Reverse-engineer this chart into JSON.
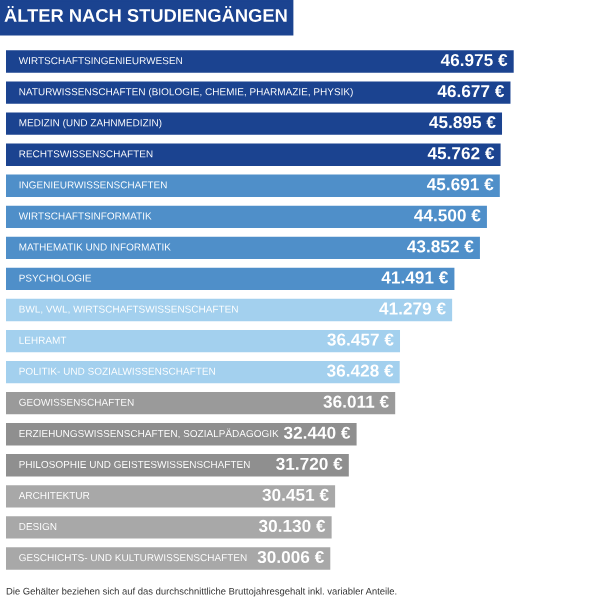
{
  "chart_data": {
    "type": "bar",
    "orientation": "horizontal",
    "title": "ÄLTER NACH STUDIENGÄNGEN",
    "categories": [
      "WIRTSCHAFTSINGENIEURWESEN",
      "NATURWISSENSCHAFTEN (BIOLOGIE, CHEMIE, PHARMAZIE, PHYSIK)",
      "MEDIZIN (UND ZAHNMEDIZIN)",
      "RECHTSWISSENSCHAFTEN",
      "INGENIEURWISSENSCHAFTEN",
      "WIRTSCHAFTSINFORMATIK",
      "MATHEMATIK UND INFORMATIK",
      "PSYCHOLOGIE",
      "BWL, VWL, WIRTSCHAFTSWISSENSCHAFTEN",
      "LEHRAMT",
      "POLITIK- UND SOZIALWISSENSCHAFTEN",
      "GEOWISSENSCHAFTEN",
      "ERZIEHUNGSWISSENSCHAFTEN, SOZIALPÄDAGOGIK",
      "PHILOSOPHIE UND GEISTESWISSENSCHAFTEN",
      "ARCHITEKTUR",
      "DESIGN",
      "GESCHICHTS- UND KULTURWISSENSCHAFTEN"
    ],
    "values": [
      46975,
      46677,
      45895,
      45762,
      45691,
      44500,
      43852,
      41491,
      41279,
      36457,
      36428,
      36011,
      32440,
      31720,
      30451,
      30130,
      30006
    ],
    "value_labels": [
      "46.975 €",
      "46.677 €",
      "45.895 €",
      "45.762 €",
      "45.691 €",
      "44.500 €",
      "43.852 €",
      "41.491 €",
      "41.279 €",
      "36.457 €",
      "36.428 €",
      "36.011 €",
      "32.440 €",
      "31.720 €",
      "30.451 €",
      "30.130 €",
      "30.006 €"
    ],
    "colors": [
      "#1b4390",
      "#1b4390",
      "#1b4390",
      "#1b4390",
      "#4f8fc9",
      "#4f8fc9",
      "#4f8fc9",
      "#4f8fc9",
      "#a3d0ee",
      "#a3d0ee",
      "#a3d0ee",
      "#9a9a9a",
      "#8f8f8f",
      "#8f8f8f",
      "#a8a8a8",
      "#a8a8a8",
      "#a8a8a8"
    ],
    "annotations": [
      "Die Gehälter beziehen sich auf das durchschnittliche Bruttojahresgehalt inkl. variabler Anteile."
    ]
  }
}
